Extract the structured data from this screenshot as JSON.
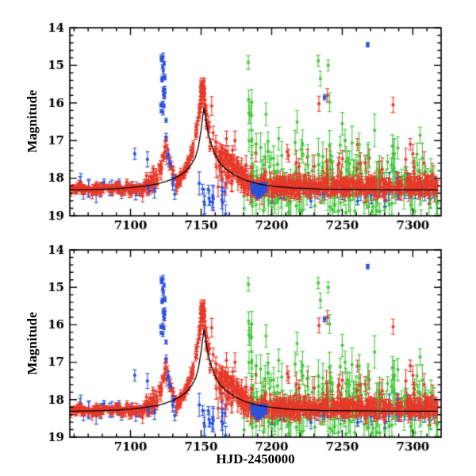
{
  "figure": {
    "background": "#ffffff",
    "axis_color": "#000000",
    "ylabel": "Magnitude",
    "xlabel": "HJD-2450000"
  },
  "chart_data": {
    "type": "scatter",
    "title": "",
    "xlabel": "HJD-2450000",
    "ylabel": "Magnitude",
    "panels": [
      "top",
      "bottom"
    ],
    "panels_note": "two stacked panels showing the same photometry with a model light curve",
    "xlim": [
      7057,
      7320
    ],
    "ylim": [
      14,
      19
    ],
    "y_axis_inverted": true,
    "x_major_ticks": [
      7100,
      7150,
      7200,
      7250,
      7300
    ],
    "x_tick_labels": [
      "7100",
      "7150",
      "7200",
      "7250",
      "7300"
    ],
    "x_minor_step": 10,
    "y_major_ticks": [
      14,
      15,
      16,
      17,
      18,
      19
    ],
    "y_tick_labels": [
      "14",
      "15",
      "16",
      "17",
      "18",
      "19"
    ],
    "y_minor_step": 0.2,
    "grid": false,
    "legend": false,
    "series": [
      {
        "key": "red",
        "color": "#e8392a"
      },
      {
        "key": "blue",
        "color": "#2a52dd"
      },
      {
        "key": "green",
        "color": "#46c73c"
      }
    ],
    "model_curve": {
      "color": "#000000",
      "x": [
        7057,
        7075,
        7090,
        7100,
        7110,
        7118,
        7125,
        7131,
        7136,
        7140,
        7143,
        7146,
        7148,
        7150,
        7151,
        7152,
        7153,
        7154,
        7156,
        7159,
        7163,
        7168,
        7174,
        7181,
        7190,
        7200,
        7215,
        7235,
        7260,
        7290,
        7318
      ],
      "y": [
        18.31,
        18.3,
        18.28,
        18.25,
        18.21,
        18.16,
        18.09,
        18.0,
        17.9,
        17.78,
        17.64,
        17.44,
        17.18,
        16.72,
        16.4,
        16.15,
        16.33,
        16.58,
        16.95,
        17.3,
        17.58,
        17.77,
        17.92,
        18.05,
        18.15,
        18.21,
        18.26,
        18.29,
        18.3,
        18.31,
        18.31
      ]
    },
    "scatter": [
      {
        "s": "green",
        "type": "gauss",
        "x0": 7178,
        "x1": 7318,
        "n": 160,
        "mean": 18.15,
        "sigma": 0.28,
        "e0": 0.15,
        "e1": 0.45
      },
      {
        "s": "green",
        "type": "gauss",
        "x0": 7180,
        "x1": 7318,
        "n": 40,
        "mean": 18.7,
        "sigma": 0.18,
        "e0": 0.2,
        "e1": 0.5
      },
      {
        "s": "blue",
        "type": "gauss",
        "x0": 7058,
        "x1": 7118,
        "n": 26,
        "mean": 18.3,
        "sigma": 0.12,
        "e0": 0.06,
        "e1": 0.25
      },
      {
        "s": "blue",
        "type": "gauss",
        "x0": 7140,
        "x1": 7170,
        "n": 16,
        "mean": 18.5,
        "sigma": 0.25,
        "e0": 0.1,
        "e1": 0.4
      },
      {
        "s": "blue",
        "type": "gauss",
        "x0": 7198,
        "x1": 7318,
        "n": 40,
        "mean": 18.3,
        "sigma": 0.12,
        "e0": 0.08,
        "e1": 0.3
      },
      {
        "s": "red",
        "type": "gauss",
        "x0": 7057,
        "x1": 7110,
        "n": 130,
        "mean": 18.28,
        "sigma": 0.07,
        "e0": 0.03,
        "e1": 0.12
      },
      {
        "s": "red",
        "type": "path",
        "pts": [
          [
            7108,
            18.22
          ],
          [
            7118,
            18.0
          ],
          [
            7122,
            17.6
          ],
          [
            7125,
            17.15
          ],
          [
            7127,
            17.45
          ],
          [
            7130,
            17.95
          ],
          [
            7133,
            18.12
          ]
        ],
        "n": 55,
        "sigma": 0.12,
        "e0": 0.04,
        "e1": 0.2
      },
      {
        "s": "red",
        "type": "path",
        "pts": [
          [
            7133,
            18.1
          ],
          [
            7138,
            17.88
          ],
          [
            7142,
            17.5
          ],
          [
            7145,
            17.1
          ],
          [
            7147,
            16.65
          ],
          [
            7149,
            16.15
          ],
          [
            7151,
            15.6
          ]
        ],
        "n": 65,
        "sigma": 0.07,
        "e0": 0.04,
        "e1": 0.12
      },
      {
        "s": "red",
        "type": "gauss",
        "x0": 7149.5,
        "x1": 7153,
        "n": 22,
        "mean": 15.68,
        "sigma": 0.13,
        "e0": 0.05,
        "e1": 0.2
      },
      {
        "s": "red",
        "type": "path",
        "pts": [
          [
            7152,
            15.8
          ],
          [
            7154,
            16.35
          ],
          [
            7156,
            16.85
          ],
          [
            7158,
            17.15
          ],
          [
            7161,
            17.35
          ],
          [
            7165,
            17.45
          ],
          [
            7170,
            17.55
          ],
          [
            7175,
            17.75
          ],
          [
            7180,
            18.0
          ],
          [
            7185,
            18.15
          ]
        ],
        "n": 85,
        "sigma": 0.15,
        "e0": 0.05,
        "e1": 0.25
      },
      {
        "s": "red",
        "type": "gauss",
        "x0": 7160,
        "x1": 7186,
        "n": 35,
        "mean": 17.95,
        "sigma": 0.3,
        "e0": 0.1,
        "e1": 0.3
      },
      {
        "s": "red",
        "type": "gauss",
        "x0": 7185,
        "x1": 7318,
        "n": 420,
        "mean": 18.22,
        "sigma": 0.1,
        "e0": 0.05,
        "e1": 0.25
      },
      {
        "s": "red",
        "type": "gauss",
        "x0": 7188,
        "x1": 7318,
        "n": 26,
        "mean": 17.6,
        "sigma": 0.25,
        "e0": 0.15,
        "e1": 0.35
      },
      {
        "s": "green",
        "type": "gauss",
        "x0": 7180,
        "x1": 7318,
        "n": 34,
        "mean": 17.35,
        "sigma": 0.3,
        "e0": 0.2,
        "e1": 0.45
      },
      {
        "s": "green",
        "type": "uniform",
        "x0": 7183,
        "x1": 7186,
        "y0": 15.5,
        "y1": 17.3,
        "n": 7,
        "e0": 0.2,
        "e1": 0.4
      },
      {
        "s": "blue",
        "type": "gauss",
        "x0": 7186,
        "x1": 7196,
        "n": 42,
        "mean": 18.3,
        "sigma": 0.07,
        "e0": 0.04,
        "e1": 0.12,
        "marker": "square"
      },
      {
        "s": "blue",
        "type": "uniform",
        "x0": 7121.5,
        "x1": 7124.5,
        "y0": 14.55,
        "y1": 16.45,
        "n": 22,
        "e0": 0.03,
        "e1": 0.1
      },
      {
        "s": "blue",
        "type": "path",
        "pts": [
          [
            7125,
            16.7
          ],
          [
            7127,
            17.5
          ],
          [
            7129,
            18.05
          ],
          [
            7132,
            18.3
          ]
        ],
        "n": 9,
        "sigma": 0.12,
        "e0": 0.05,
        "e1": 0.2
      }
    ],
    "outliers": [
      {
        "s": "red",
        "x": 7233.5,
        "y": 16.02,
        "e": 0.2
      },
      {
        "s": "red",
        "x": 7239.5,
        "y": 15.8,
        "e": 0.18
      },
      {
        "s": "red",
        "x": 7286,
        "y": 16.05,
        "e": 0.2
      },
      {
        "s": "red",
        "x": 7157.5,
        "y": 16.08,
        "e": 0.25
      },
      {
        "s": "red",
        "x": 7168,
        "y": 16.95,
        "e": 0.2
      },
      {
        "s": "red",
        "x": 7174,
        "y": 17.0,
        "e": 0.25
      },
      {
        "s": "red",
        "x": 7211,
        "y": 17.3,
        "e": 0.2
      },
      {
        "s": "red",
        "x": 7300,
        "y": 17.35,
        "e": 0.25
      },
      {
        "s": "red",
        "x": 7308,
        "y": 17.6,
        "e": 0.3
      },
      {
        "s": "red",
        "x": 7295,
        "y": 17.5,
        "e": 0.3
      },
      {
        "s": "green",
        "x": 7183.5,
        "y": 14.92,
        "e": 0.18
      },
      {
        "s": "green",
        "x": 7233,
        "y": 14.88,
        "e": 0.15
      },
      {
        "s": "green",
        "x": 7234.5,
        "y": 15.35,
        "e": 0.2
      },
      {
        "s": "green",
        "x": 7240,
        "y": 15.0,
        "e": 0.15
      },
      {
        "s": "green",
        "x": 7241,
        "y": 15.98,
        "e": 0.25
      },
      {
        "s": "green",
        "x": 7218,
        "y": 16.5,
        "e": 0.3
      },
      {
        "s": "green",
        "x": 7250,
        "y": 16.55,
        "e": 0.3
      },
      {
        "s": "green",
        "x": 7252,
        "y": 17.0,
        "e": 0.3
      },
      {
        "s": "green",
        "x": 7285.5,
        "y": 17.15,
        "e": 0.3
      },
      {
        "s": "green",
        "x": 7205,
        "y": 16.95,
        "e": 0.3
      },
      {
        "s": "green",
        "x": 7196,
        "y": 16.3,
        "e": 0.3
      },
      {
        "s": "green",
        "x": 7262,
        "y": 17.1,
        "e": 0.3
      },
      {
        "s": "blue",
        "x": 7237.5,
        "y": 15.85,
        "e": 0.07,
        "marker": "square"
      },
      {
        "s": "blue",
        "x": 7268,
        "y": 14.45,
        "e": 0.06,
        "marker": "square"
      },
      {
        "s": "blue",
        "x": 7103,
        "y": 17.35,
        "e": 0.15
      },
      {
        "s": "blue",
        "x": 7112,
        "y": 17.5,
        "e": 0.2
      }
    ]
  }
}
